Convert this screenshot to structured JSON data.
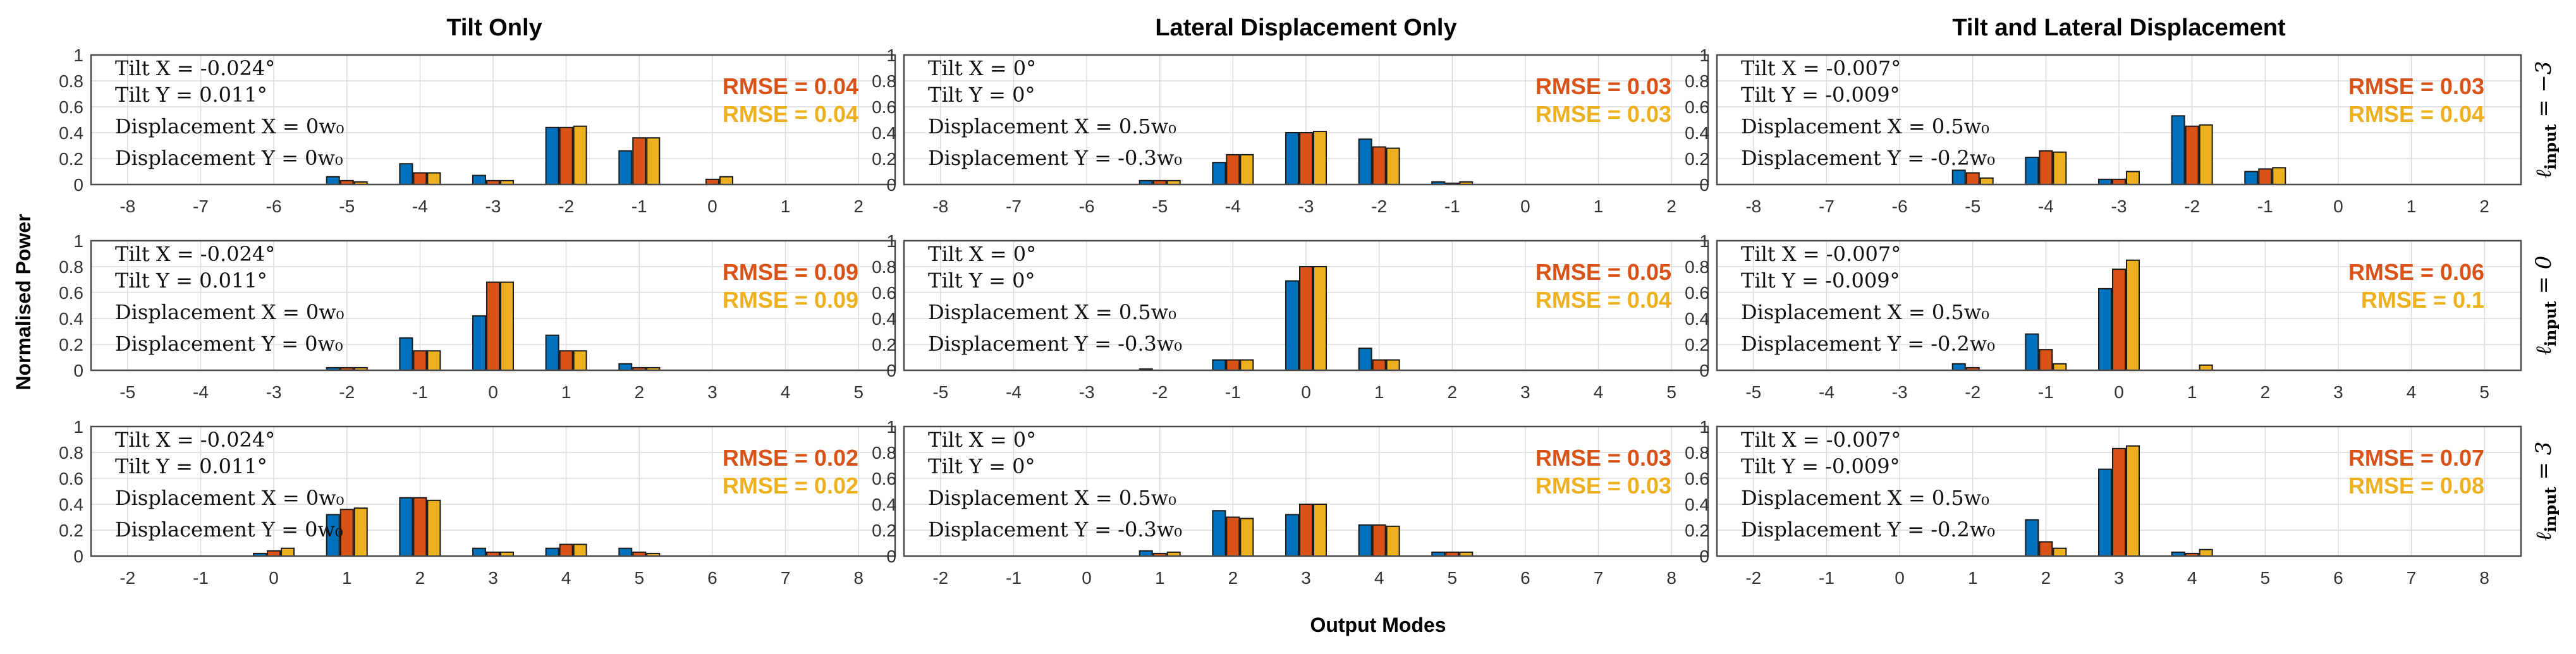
{
  "figure": {
    "y_axis_title": "Normalised Power",
    "x_axis_title": "Output Modes",
    "column_titles": [
      "Tilt Only",
      "Lateral Displacement Only",
      "Tilt and Lateral Displacement"
    ],
    "row_labels": [
      {
        "base": "ℓ",
        "sub": "input",
        "value": " = −3"
      },
      {
        "base": "ℓ",
        "sub": "input",
        "value": " = 0"
      },
      {
        "base": "ℓ",
        "sub": "input",
        "value": " = 3"
      }
    ]
  },
  "colors": {
    "series_0": "#0072BD",
    "series_1": "#D95319",
    "series_2": "#EDB120",
    "rmse_1": "#D95319",
    "rmse_2": "#EDB120"
  },
  "chart_data": [
    {
      "type": "bar",
      "row": 0,
      "col": 0,
      "x": [
        -8,
        -7,
        -6,
        -5,
        -4,
        -3,
        -2,
        -1,
        0,
        1,
        2
      ],
      "ylim": [
        0,
        1
      ],
      "yticks": [
        0,
        0.2,
        0.4,
        0.6,
        0.8,
        1
      ],
      "params": [
        "Tilt X = -0.024°",
        "Tilt Y = 0.011°",
        "Displacement X = 0w₀",
        "Displacement Y = 0w₀"
      ],
      "rmse": [
        "RMSE = 0.04",
        "RMSE = 0.04"
      ],
      "series": [
        {
          "values": [
            0,
            0,
            0,
            0.06,
            0.16,
            0.07,
            0.44,
            0.26,
            0,
            0,
            0
          ]
        },
        {
          "values": [
            0,
            0,
            0,
            0.03,
            0.09,
            0.03,
            0.44,
            0.36,
            0.04,
            0,
            0
          ]
        },
        {
          "values": [
            0,
            0,
            0,
            0.02,
            0.09,
            0.03,
            0.45,
            0.36,
            0.06,
            0,
            0
          ]
        }
      ]
    },
    {
      "type": "bar",
      "row": 0,
      "col": 1,
      "x": [
        -8,
        -7,
        -6,
        -5,
        -4,
        -3,
        -2,
        -1,
        0,
        1,
        2
      ],
      "ylim": [
        0,
        1
      ],
      "yticks": [
        0,
        0.2,
        0.4,
        0.6,
        0.8,
        1
      ],
      "params": [
        "Tilt X = 0°",
        "Tilt Y = 0°",
        "Displacement X = 0.5w₀",
        "Displacement Y = -0.3w₀"
      ],
      "rmse": [
        "RMSE = 0.03",
        "RMSE = 0.03"
      ],
      "series": [
        {
          "values": [
            0,
            0,
            0,
            0.03,
            0.17,
            0.4,
            0.35,
            0.02,
            0,
            0,
            0
          ]
        },
        {
          "values": [
            0,
            0,
            0,
            0.03,
            0.23,
            0.4,
            0.29,
            0.01,
            0,
            0,
            0
          ]
        },
        {
          "values": [
            0,
            0,
            0,
            0.03,
            0.23,
            0.41,
            0.28,
            0.02,
            0,
            0,
            0
          ]
        }
      ]
    },
    {
      "type": "bar",
      "row": 0,
      "col": 2,
      "x": [
        -8,
        -7,
        -6,
        -5,
        -4,
        -3,
        -2,
        -1,
        0,
        1,
        2
      ],
      "ylim": [
        0,
        1
      ],
      "yticks": [
        0,
        0.2,
        0.4,
        0.6,
        0.8,
        1
      ],
      "params": [
        "Tilt X = -0.007°",
        "Tilt Y = -0.009°",
        "Displacement X = 0.5w₀",
        "Displacement Y = -0.2w₀"
      ],
      "rmse": [
        "RMSE = 0.03",
        "RMSE = 0.04"
      ],
      "series": [
        {
          "values": [
            0,
            0,
            0,
            0.11,
            0.21,
            0.04,
            0.53,
            0.1,
            0,
            0,
            0
          ]
        },
        {
          "values": [
            0,
            0,
            0,
            0.09,
            0.26,
            0.04,
            0.45,
            0.12,
            0,
            0,
            0
          ]
        },
        {
          "values": [
            0,
            0,
            0,
            0.05,
            0.25,
            0.1,
            0.46,
            0.13,
            0,
            0,
            0
          ]
        }
      ]
    },
    {
      "type": "bar",
      "row": 1,
      "col": 0,
      "x": [
        -5,
        -4,
        -3,
        -2,
        -1,
        0,
        1,
        2,
        3,
        4,
        5
      ],
      "ylim": [
        0,
        1
      ],
      "yticks": [
        0,
        0.2,
        0.4,
        0.6,
        0.8,
        1
      ],
      "params": [
        "Tilt X = -0.024°",
        "Tilt Y = 0.011°",
        "Displacement X = 0w₀",
        "Displacement Y = 0w₀"
      ],
      "rmse": [
        "RMSE = 0.09",
        "RMSE = 0.09"
      ],
      "series": [
        {
          "values": [
            0,
            0,
            0,
            0.02,
            0.25,
            0.42,
            0.27,
            0.05,
            0,
            0,
            0
          ]
        },
        {
          "values": [
            0,
            0,
            0,
            0.02,
            0.15,
            0.68,
            0.15,
            0.02,
            0,
            0,
            0
          ]
        },
        {
          "values": [
            0,
            0,
            0,
            0.02,
            0.15,
            0.68,
            0.15,
            0.02,
            0,
            0,
            0
          ]
        }
      ]
    },
    {
      "type": "bar",
      "row": 1,
      "col": 1,
      "x": [
        -5,
        -4,
        -3,
        -2,
        -1,
        0,
        1,
        2,
        3,
        4,
        5
      ],
      "ylim": [
        0,
        1
      ],
      "yticks": [
        0,
        0.2,
        0.4,
        0.6,
        0.8,
        1
      ],
      "params": [
        "Tilt X = 0°",
        "Tilt Y = 0°",
        "Displacement X = 0.5w₀",
        "Displacement Y = -0.3w₀"
      ],
      "rmse": [
        "RMSE = 0.05",
        "RMSE = 0.04"
      ],
      "series": [
        {
          "values": [
            0,
            0,
            0,
            0.01,
            0.08,
            0.69,
            0.17,
            0,
            0,
            0,
            0
          ]
        },
        {
          "values": [
            0,
            0,
            0,
            0,
            0.08,
            0.8,
            0.08,
            0,
            0,
            0,
            0
          ]
        },
        {
          "values": [
            0,
            0,
            0,
            0,
            0.08,
            0.8,
            0.08,
            0,
            0,
            0,
            0
          ]
        }
      ]
    },
    {
      "type": "bar",
      "row": 1,
      "col": 2,
      "x": [
        -5,
        -4,
        -3,
        -2,
        -1,
        0,
        1,
        2,
        3,
        4,
        5
      ],
      "ylim": [
        0,
        1
      ],
      "yticks": [
        0,
        0.2,
        0.4,
        0.6,
        0.8,
        1
      ],
      "params": [
        "Tilt X = -0.007°",
        "Tilt Y = -0.009°",
        "Displacement X = 0.5w₀",
        "Displacement Y = -0.2w₀"
      ],
      "rmse": [
        "RMSE = 0.06",
        "RMSE = 0.1"
      ],
      "series": [
        {
          "values": [
            0,
            0,
            0,
            0.05,
            0.28,
            0.63,
            0,
            0,
            0,
            0,
            0
          ]
        },
        {
          "values": [
            0,
            0,
            0,
            0.02,
            0.16,
            0.78,
            0,
            0,
            0,
            0,
            0
          ]
        },
        {
          "values": [
            0,
            0,
            0,
            0,
            0.05,
            0.85,
            0.04,
            0,
            0,
            0,
            0
          ]
        }
      ]
    },
    {
      "type": "bar",
      "row": 2,
      "col": 0,
      "x": [
        -2,
        -1,
        0,
        1,
        2,
        3,
        4,
        5,
        6,
        7,
        8
      ],
      "ylim": [
        0,
        1
      ],
      "yticks": [
        0,
        0.2,
        0.4,
        0.6,
        0.8,
        1
      ],
      "params": [
        "Tilt X = -0.024°",
        "Tilt Y = 0.011°",
        "Displacement X = 0w₀",
        "Displacement Y = 0w₀"
      ],
      "rmse": [
        "RMSE = 0.02",
        "RMSE = 0.02"
      ],
      "series": [
        {
          "values": [
            0,
            0,
            0.02,
            0.32,
            0.45,
            0.06,
            0.06,
            0.06,
            0,
            0,
            0
          ]
        },
        {
          "values": [
            0,
            0,
            0.04,
            0.36,
            0.45,
            0.03,
            0.09,
            0.03,
            0,
            0,
            0
          ]
        },
        {
          "values": [
            0,
            0,
            0.06,
            0.37,
            0.43,
            0.03,
            0.09,
            0.02,
            0,
            0,
            0
          ]
        }
      ]
    },
    {
      "type": "bar",
      "row": 2,
      "col": 1,
      "x": [
        -2,
        -1,
        0,
        1,
        2,
        3,
        4,
        5,
        6,
        7,
        8
      ],
      "ylim": [
        0,
        1
      ],
      "yticks": [
        0,
        0.2,
        0.4,
        0.6,
        0.8,
        1
      ],
      "params": [
        "Tilt X = 0°",
        "Tilt Y = 0°",
        "Displacement X = 0.5w₀",
        "Displacement Y = -0.3w₀"
      ],
      "rmse": [
        "RMSE = 0.03",
        "RMSE = 0.03"
      ],
      "series": [
        {
          "values": [
            0,
            0,
            0,
            0.04,
            0.35,
            0.32,
            0.24,
            0.03,
            0,
            0,
            0
          ]
        },
        {
          "values": [
            0,
            0,
            0,
            0.02,
            0.3,
            0.4,
            0.24,
            0.03,
            0,
            0,
            0
          ]
        },
        {
          "values": [
            0,
            0,
            0,
            0.03,
            0.29,
            0.4,
            0.23,
            0.03,
            0,
            0,
            0
          ]
        }
      ]
    },
    {
      "type": "bar",
      "row": 2,
      "col": 2,
      "x": [
        -2,
        -1,
        0,
        1,
        2,
        3,
        4,
        5,
        6,
        7,
        8
      ],
      "ylim": [
        0,
        1
      ],
      "yticks": [
        0,
        0.2,
        0.4,
        0.6,
        0.8,
        1
      ],
      "params": [
        "Tilt X = -0.007°",
        "Tilt Y = -0.009°",
        "Displacement X = 0.5w₀",
        "Displacement Y = -0.2w₀"
      ],
      "rmse": [
        "RMSE = 0.07",
        "RMSE = 0.08"
      ],
      "series": [
        {
          "values": [
            0,
            0,
            0,
            0,
            0.28,
            0.67,
            0.03,
            0,
            0,
            0,
            0
          ]
        },
        {
          "values": [
            0,
            0,
            0,
            0,
            0.11,
            0.83,
            0.02,
            0,
            0,
            0,
            0
          ]
        },
        {
          "values": [
            0,
            0,
            0,
            0,
            0.06,
            0.85,
            0.05,
            0,
            0,
            0,
            0
          ]
        }
      ]
    }
  ]
}
